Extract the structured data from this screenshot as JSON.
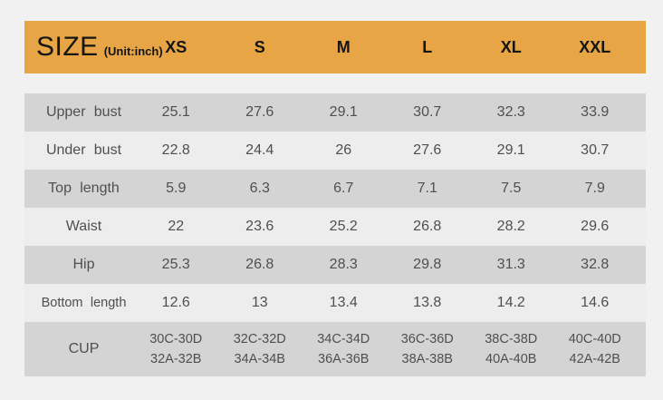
{
  "chart_data": {
    "type": "table",
    "title": "SIZE",
    "unit_label": "(Unit:inch)",
    "columns": [
      "XS",
      "S",
      "M",
      "L",
      "XL",
      "XXL"
    ],
    "rows": [
      {
        "label": "Upper bust",
        "values": [
          "25.1",
          "27.6",
          "29.1",
          "30.7",
          "32.3",
          "33.9"
        ]
      },
      {
        "label": "Under bust",
        "values": [
          "22.8",
          "24.4",
          "26",
          "27.6",
          "29.1",
          "30.7"
        ]
      },
      {
        "label": "Top length",
        "values": [
          "5.9",
          "6.3",
          "6.7",
          "7.1",
          "7.5",
          "7.9"
        ]
      },
      {
        "label": "Waist",
        "values": [
          "22",
          "23.6",
          "25.2",
          "26.8",
          "28.2",
          "29.6"
        ]
      },
      {
        "label": "Hip",
        "values": [
          "25.3",
          "26.8",
          "28.3",
          "29.8",
          "31.3",
          "32.8"
        ]
      },
      {
        "label": "Bottom length",
        "values": [
          "12.6",
          "13",
          "13.4",
          "13.8",
          "14.2",
          "14.6"
        ]
      },
      {
        "label": "CUP",
        "values": [
          [
            "30C-30D",
            "32A-32B"
          ],
          [
            "32C-32D",
            "34A-34B"
          ],
          [
            "34C-34D",
            "36A-36B"
          ],
          [
            "36C-36D",
            "38A-38B"
          ],
          [
            "38C-38D",
            "40A-40B"
          ],
          [
            "40C-40D",
            "42A-42B"
          ]
        ]
      }
    ]
  },
  "colors": {
    "header_background": "#e7a545",
    "stripe_row": "#d4d4d4",
    "light_row": "#ededed",
    "page_background": "#f1f1f1",
    "header_text": "#151515",
    "body_text": "#4f4f4f"
  }
}
